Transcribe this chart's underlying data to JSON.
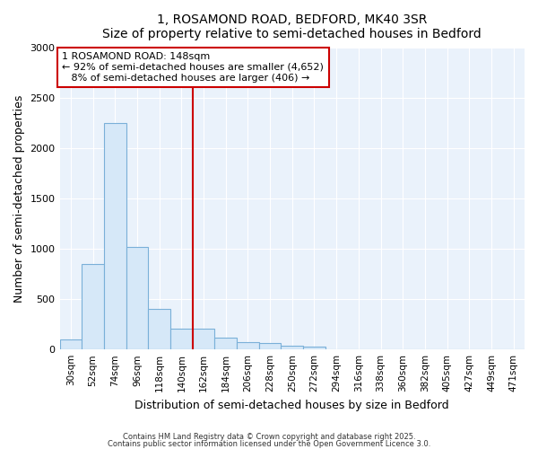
{
  "title1": "1, ROSAMOND ROAD, BEDFORD, MK40 3SR",
  "title2": "Size of property relative to semi-detached houses in Bedford",
  "xlabel": "Distribution of semi-detached houses by size in Bedford",
  "ylabel": "Number of semi-detached properties",
  "categories": [
    "30sqm",
    "52sqm",
    "74sqm",
    "96sqm",
    "118sqm",
    "140sqm",
    "162sqm",
    "184sqm",
    "206sqm",
    "228sqm",
    "250sqm",
    "272sqm",
    "294sqm",
    "316sqm",
    "338sqm",
    "360sqm",
    "382sqm",
    "405sqm",
    "427sqm",
    "449sqm",
    "471sqm"
  ],
  "values": [
    100,
    850,
    2250,
    1020,
    400,
    210,
    210,
    115,
    75,
    60,
    40,
    25,
    5,
    3,
    2,
    1,
    1,
    0,
    0,
    0,
    0
  ],
  "bar_color": "#d6e8f8",
  "bar_edge_color": "#7ab0d8",
  "property_line_x": 5.5,
  "property_sqm": 148,
  "pct_smaller": 92,
  "count_smaller": 4652,
  "pct_larger": 8,
  "count_larger": 406,
  "annotation_box_color": "#cc0000",
  "vline_color": "#cc0000",
  "ylim": [
    0,
    3000
  ],
  "yticks": [
    0,
    500,
    1000,
    1500,
    2000,
    2500,
    3000
  ],
  "grid_color": "#c8d8e8",
  "footer1": "Contains HM Land Registry data © Crown copyright and database right 2025.",
  "footer2": "Contains public sector information licensed under the Open Government Licence 3.0.",
  "bg_color": "#ffffff",
  "plot_bg_color": "#eaf2fb"
}
